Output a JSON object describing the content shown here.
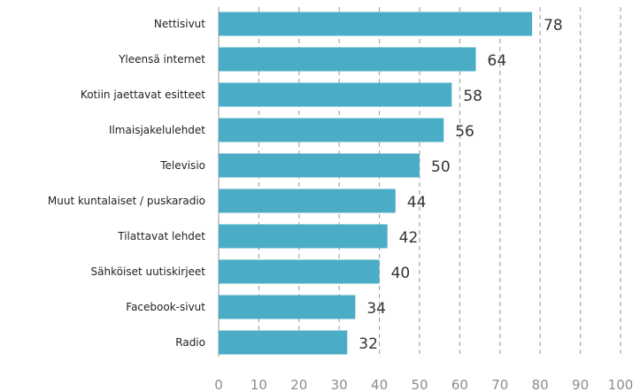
{
  "chart_data": {
    "type": "bar",
    "orientation": "horizontal",
    "title": "",
    "xlabel": "",
    "ylabel": "",
    "categories": [
      "Nettisivut",
      "Yleensä internet",
      "Kotiin jaettavat esitteet",
      "Ilmaisjakelulehdet",
      "Televisio",
      "Muut kuntalaiset / puskaradio",
      "Tilattavat lehdet",
      "Sähköiset uutiskirjeet",
      "Facebook-sivut",
      "Radio"
    ],
    "values": [
      78,
      64,
      58,
      56,
      50,
      44,
      42,
      40,
      34,
      32
    ],
    "xlim": [
      0,
      100
    ],
    "xticks": [
      0,
      10,
      20,
      30,
      40,
      50,
      60,
      70,
      80,
      90,
      100
    ],
    "xtick_labels": [
      "0",
      "10",
      "20",
      "30",
      "40",
      "50",
      "60",
      "70",
      "80",
      "90",
      "100"
    ],
    "bar_color": "#4BACC6",
    "grid": "vertical dashed",
    "legend": "none"
  }
}
